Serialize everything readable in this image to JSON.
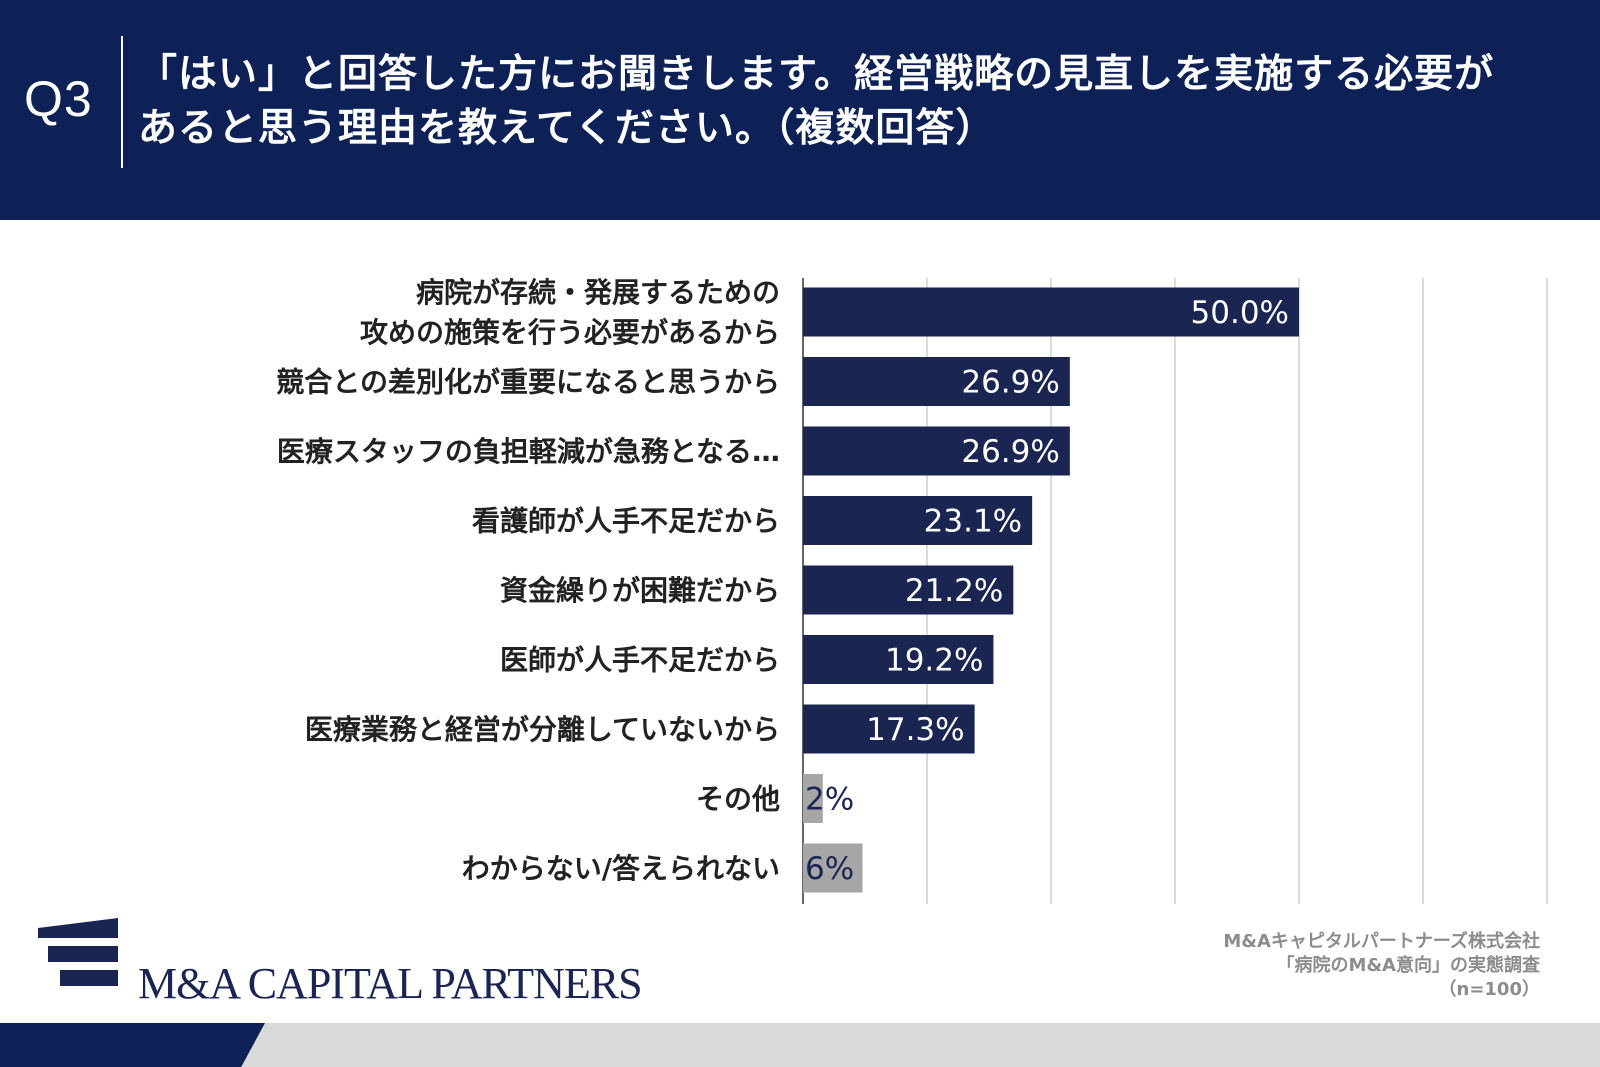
{
  "header": {
    "q_label": "Q3",
    "question_line1": "「はい」と回答した方にお聞きします。経営戦略の見直しを実施する必要が",
    "question_line2": "あると思う理由を教えてください。（複数回答）"
  },
  "chart_data": {
    "type": "bar",
    "orientation": "horizontal",
    "title": "",
    "xlim": [
      0,
      100
    ],
    "grid": true,
    "categories": [
      [
        "病院が存続・発展するための",
        "攻めの施策を行う必要があるから"
      ],
      [
        "競合との差別化が重要になると思うから"
      ],
      [
        "医療スタッフの負担軽減が急務となる…"
      ],
      [
        "看護師が人手不足だから"
      ],
      [
        "資金繰りが困難だから"
      ],
      [
        "医師が人手不足だから"
      ],
      [
        "医療業務と経営が分離していないから"
      ],
      [
        "その他"
      ],
      [
        "わからない/答えられない"
      ]
    ],
    "values": [
      50.0,
      26.9,
      26.9,
      23.1,
      21.2,
      19.2,
      17.3,
      2,
      6
    ],
    "value_labels": [
      "50.0%",
      "26.9%",
      "26.9%",
      "23.1%",
      "21.2%",
      "19.2%",
      "17.3%",
      "2%",
      "6%"
    ],
    "bar_colors": [
      "#1b2552",
      "#1b2552",
      "#1b2552",
      "#1b2552",
      "#1b2552",
      "#1b2552",
      "#1b2552",
      "#a6a6a6",
      "#a6a6a6"
    ],
    "label_colors": [
      "#ffffff",
      "#ffffff",
      "#ffffff",
      "#ffffff",
      "#ffffff",
      "#ffffff",
      "#ffffff",
      "#1b2552",
      "#1b2552"
    ]
  },
  "logo": {
    "text": "M&A CAPITAL PARTNERS"
  },
  "source": {
    "line1": "M&Aキャピタルパートナーズ株式会社",
    "line2": "「病院のM&A意向」の実態調査",
    "line3": "（n=100）"
  },
  "colors": {
    "navy": "#0e2157",
    "bar": "#1b2552",
    "gray_bar": "#a6a6a6"
  }
}
